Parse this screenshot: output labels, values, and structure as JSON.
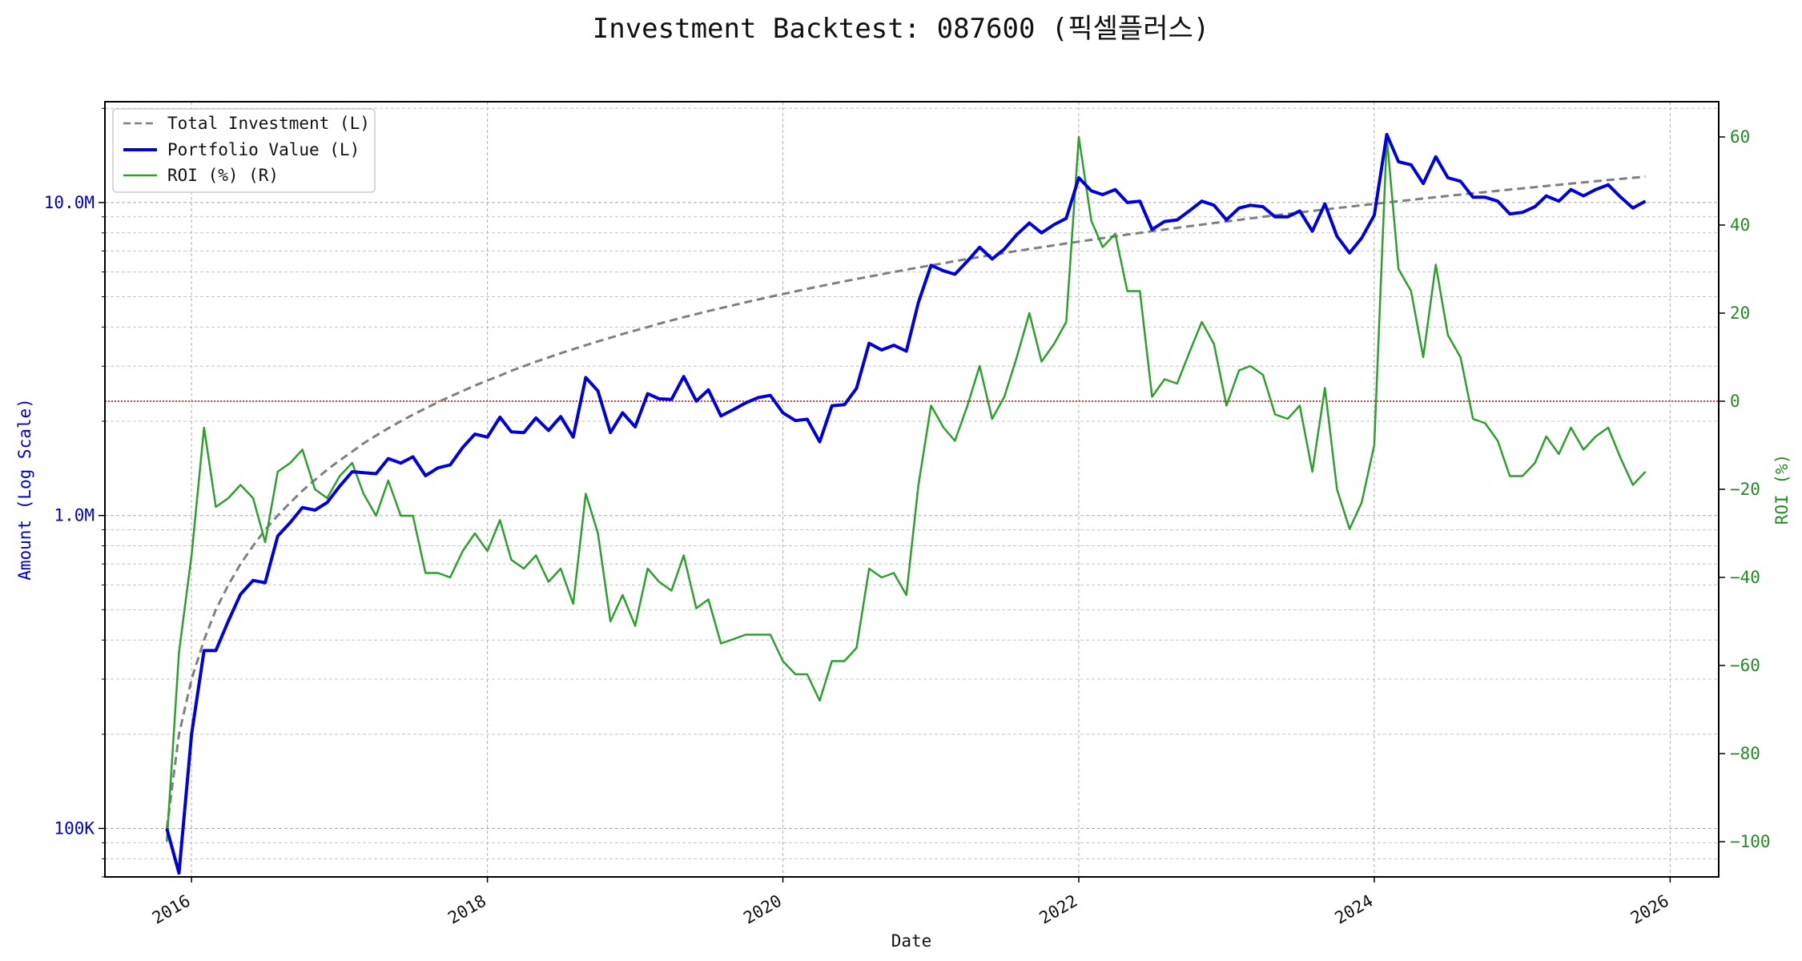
{
  "chart_data": {
    "type": "line",
    "title": "Investment Backtest: 087600 (픽셀플러스)",
    "xlabel": "Date",
    "ylabel_left": "Amount (Log Scale)",
    "ylabel_right": "ROI (%)",
    "y_left_scale": "log",
    "y_left_range": [
      70000,
      21000000
    ],
    "y_right_range": [
      -108,
      68
    ],
    "x_range": [
      "2015-06-01",
      "2026-05-01"
    ],
    "grid": true,
    "legend_position": "top-left",
    "x_ticks": [
      {
        "date": "2016-01-01",
        "label": "2016"
      },
      {
        "date": "2018-01-01",
        "label": "2018"
      },
      {
        "date": "2020-01-01",
        "label": "2020"
      },
      {
        "date": "2022-01-01",
        "label": "2022"
      },
      {
        "date": "2024-01-01",
        "label": "2024"
      },
      {
        "date": "2026-01-01",
        "label": "2026"
      }
    ],
    "y_left_ticks": [
      {
        "value": 100000,
        "label": "100K"
      },
      {
        "value": 1000000,
        "label": "1.0M"
      },
      {
        "value": 10000000,
        "label": "10.0M"
      }
    ],
    "y_right_ticks": [
      {
        "value": 60,
        "label": "60"
      },
      {
        "value": 40,
        "label": "40"
      },
      {
        "value": 20,
        "label": "20"
      },
      {
        "value": 0,
        "label": "0"
      },
      {
        "value": -20,
        "label": "−20"
      },
      {
        "value": -40,
        "label": "−40"
      },
      {
        "value": -60,
        "label": "−60"
      },
      {
        "value": -80,
        "label": "−80"
      },
      {
        "value": -100,
        "label": "−100"
      }
    ],
    "colors": {
      "investment": "#7f7f7f",
      "portfolio": "#0000dd",
      "roi": "#2ca02c",
      "zero_line": "#cc0000",
      "left_axis": "#0000cc",
      "right_axis": "#228b22"
    },
    "legend": [
      {
        "key": "investment",
        "label": "Total Investment (L)",
        "style": "dashed"
      },
      {
        "key": "portfolio",
        "label": "Portfolio Value (L)",
        "style": "solid-thick"
      },
      {
        "key": "roi",
        "label": "ROI (%) (R)",
        "style": "solid"
      }
    ],
    "start_date": "2015-11-01",
    "monthly_contribution": 100000,
    "series": [
      {
        "name": "Portfolio Value (L)",
        "axis": "left",
        "values": [
          100000,
          72000,
          200000,
          370000,
          370000,
          460000,
          560000,
          620000,
          610000,
          860000,
          950000,
          1060000,
          1040000,
          1100000,
          1240000,
          1380000,
          1370000,
          1360000,
          1520000,
          1470000,
          1540000,
          1340000,
          1420000,
          1450000,
          1650000,
          1820000,
          1780000,
          2060000,
          1850000,
          1840000,
          2050000,
          1870000,
          2070000,
          1780000,
          2760000,
          2500000,
          1840000,
          2130000,
          1920000,
          2450000,
          2360000,
          2350000,
          2780000,
          2320000,
          2520000,
          2080000,
          2180000,
          2290000,
          2380000,
          2420000,
          2130000,
          2010000,
          2030000,
          1720000,
          2240000,
          2260000,
          2550000,
          3550000,
          3380000,
          3500000,
          3350000,
          4800000,
          6300000,
          6050000,
          5900000,
          6500000,
          7200000,
          6600000,
          7100000,
          7900000,
          8600000,
          8000000,
          8500000,
          8900000,
          12000000,
          10900000,
          10600000,
          11000000,
          10000000,
          10100000,
          8200000,
          8700000,
          8800000,
          9400000,
          10100000,
          9800000,
          8800000,
          9600000,
          9800000,
          9700000,
          9000000,
          9000000,
          9400000,
          8100000,
          9900000,
          7800000,
          6900000,
          7700000,
          9100000,
          16500000,
          13500000,
          13200000,
          11500000,
          14000000,
          12000000,
          11700000,
          10400000,
          10400000,
          10100000,
          9200000,
          9300000,
          9700000,
          10500000,
          10100000,
          11000000,
          10500000,
          11000000,
          11400000,
          10400000,
          9600000,
          10100000
        ]
      },
      {
        "name": "ROI (%) (R)",
        "axis": "right",
        "values": [
          -100,
          -57,
          -35,
          -6,
          -24,
          -22,
          -19,
          -22,
          -32,
          -16,
          -14,
          -11,
          -20,
          -22,
          -17,
          -14,
          -21,
          -26,
          -18,
          -26,
          -26,
          -39,
          -39,
          -40,
          -34,
          -30,
          -34,
          -27,
          -36,
          -38,
          -35,
          -41,
          -38,
          -46,
          -21,
          -30,
          -50,
          -44,
          -51,
          -38,
          -41,
          -43,
          -35,
          -47,
          -45,
          -55,
          -54,
          -53,
          -53,
          -53,
          -59,
          -62,
          -62,
          -68,
          -59,
          -59,
          -56,
          -38,
          -40,
          -39,
          -44,
          -19,
          -1,
          -6,
          -9,
          -1,
          8,
          -4,
          1,
          10,
          20,
          9,
          13,
          18,
          60,
          41,
          35,
          38,
          25,
          25,
          1,
          5,
          4,
          11,
          18,
          13,
          -1,
          7,
          8,
          6,
          -3,
          -4,
          -1,
          -16,
          3,
          -20,
          -29,
          -23,
          -10,
          60,
          30,
          25,
          10,
          31,
          15,
          10,
          -4,
          -5,
          -9,
          -17,
          -17,
          -14,
          -8,
          -12,
          -6,
          -11,
          -8,
          -6,
          -13,
          -19,
          -16
        ]
      }
    ]
  }
}
